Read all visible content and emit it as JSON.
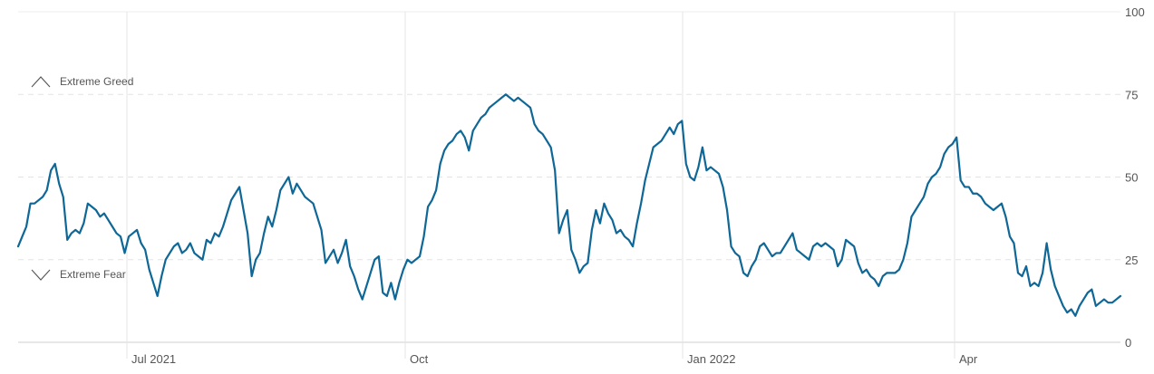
{
  "chart_data": {
    "type": "line",
    "ylim": [
      0,
      100
    ],
    "y_ticks": [
      "0",
      "25",
      "50",
      "75",
      "100"
    ],
    "x_ticks": [
      "Jul 2021",
      "Oct",
      "Jan 2022",
      "Apr"
    ],
    "zone_labels": {
      "upper": "Extreme Greed",
      "lower": "Extreme Fear"
    },
    "grid": true,
    "line_color": "#0e6796",
    "series": [
      {
        "values": [
          29,
          32,
          35,
          42,
          42,
          43,
          44,
          46,
          52,
          54,
          48,
          44,
          31,
          33,
          34,
          33,
          36,
          42,
          41,
          40,
          38,
          39,
          37,
          35,
          33,
          32,
          27,
          32,
          33,
          34,
          30,
          28,
          22,
          18,
          14,
          20,
          25,
          27,
          29,
          30,
          27,
          28,
          30,
          27,
          26,
          25,
          31,
          30,
          33,
          32,
          35,
          39,
          43,
          45,
          47,
          40,
          33,
          20,
          25,
          27,
          33,
          38,
          35,
          40,
          46,
          48,
          50,
          45,
          48,
          46,
          44,
          43,
          42,
          38,
          34,
          24,
          26,
          28,
          24,
          27,
          31,
          23,
          20,
          16,
          13,
          17,
          21,
          25,
          26,
          15,
          14,
          18,
          13,
          18,
          22,
          25,
          24,
          25,
          26,
          32,
          41,
          43,
          46,
          54,
          58,
          60,
          61,
          63,
          64,
          62,
          58,
          64,
          66,
          68,
          69,
          71,
          72,
          73,
          74,
          75,
          74,
          73,
          74,
          73,
          72,
          71,
          66,
          64,
          63,
          61,
          59,
          52,
          33,
          37,
          40,
          28,
          25,
          21,
          23,
          24,
          34,
          40,
          36,
          42,
          39,
          37,
          33,
          34,
          32,
          31,
          29,
          36,
          42,
          49,
          54,
          59,
          60,
          61,
          63,
          65,
          63,
          66,
          67,
          54,
          50,
          49,
          53,
          59,
          52,
          53,
          52,
          51,
          47,
          40,
          29,
          27,
          26,
          21,
          20,
          23,
          25,
          29,
          30,
          28,
          26,
          27,
          27,
          29,
          31,
          33,
          28,
          27,
          26,
          25,
          29,
          30,
          29,
          30,
          29,
          28,
          23,
          25,
          31,
          30,
          29,
          24,
          21,
          22,
          20,
          19,
          17,
          20,
          21,
          21,
          21,
          22,
          25,
          30,
          38,
          40,
          42,
          44,
          48,
          50,
          51,
          53,
          57,
          59,
          60,
          62,
          49,
          47,
          47,
          45,
          45,
          44,
          42,
          41,
          40,
          41,
          42,
          38,
          32,
          30,
          21,
          20,
          23,
          17,
          18,
          17,
          21,
          30,
          22,
          17,
          14,
          11,
          9,
          10,
          8,
          11,
          13,
          15,
          16,
          11,
          12,
          13,
          12,
          12,
          13,
          14
        ]
      }
    ]
  }
}
